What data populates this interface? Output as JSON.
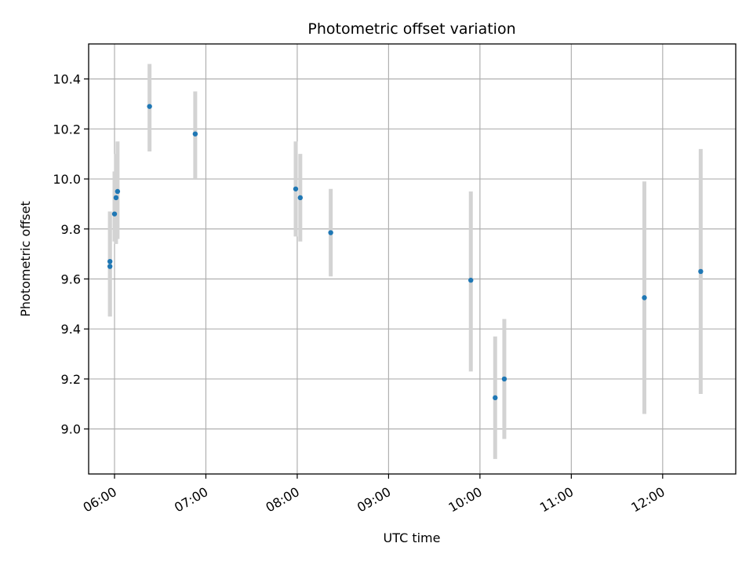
{
  "chart_data": {
    "type": "scatter",
    "title": "Photometric offset variation",
    "xlabel": "UTC time",
    "ylabel": "Photometric offset",
    "x_axis_type": "time",
    "xlim": [
      "05:43",
      "12:48"
    ],
    "ylim": [
      8.82,
      10.54
    ],
    "x_ticks": [
      "06:00",
      "07:00",
      "08:00",
      "09:00",
      "10:00",
      "11:00",
      "12:00"
    ],
    "y_ticks": [
      "9.0",
      "9.2",
      "9.4",
      "9.6",
      "9.8",
      "10.0",
      "10.2",
      "10.4"
    ],
    "grid": true,
    "legend": "none",
    "colors": {
      "point": "#1f77b4",
      "errorbar": "#d3d3d3",
      "grid": "#b0b0b0",
      "axes": "#000000"
    },
    "series": [
      {
        "points": [
          {
            "x": "05:57",
            "y": 9.65,
            "y_low": 9.45,
            "y_high": 9.87
          },
          {
            "x": "05:57",
            "y": 9.67,
            "y_low": 9.45,
            "y_high": 9.87
          },
          {
            "x": "06:00",
            "y": 9.86,
            "y_low": 9.75,
            "y_high": 10.03
          },
          {
            "x": "06:01",
            "y": 9.925,
            "y_low": 9.74,
            "y_high": 10.1
          },
          {
            "x": "06:02",
            "y": 9.95,
            "y_low": 9.76,
            "y_high": 10.15
          },
          {
            "x": "06:23",
            "y": 10.29,
            "y_low": 10.11,
            "y_high": 10.46
          },
          {
            "x": "06:53",
            "y": 10.18,
            "y_low": 10.0,
            "y_high": 10.35
          },
          {
            "x": "07:59",
            "y": 9.96,
            "y_low": 9.77,
            "y_high": 10.15
          },
          {
            "x": "08:02",
            "y": 9.925,
            "y_low": 9.75,
            "y_high": 10.1
          },
          {
            "x": "08:22",
            "y": 9.785,
            "y_low": 9.61,
            "y_high": 9.96
          },
          {
            "x": "09:54",
            "y": 9.595,
            "y_low": 9.23,
            "y_high": 9.95
          },
          {
            "x": "10:10",
            "y": 9.125,
            "y_low": 8.88,
            "y_high": 9.37
          },
          {
            "x": "10:16",
            "y": 9.2,
            "y_low": 8.96,
            "y_high": 9.44
          },
          {
            "x": "11:48",
            "y": 9.525,
            "y_low": 9.06,
            "y_high": 9.99
          },
          {
            "x": "12:25",
            "y": 9.63,
            "y_low": 9.14,
            "y_high": 10.12
          }
        ]
      }
    ]
  }
}
